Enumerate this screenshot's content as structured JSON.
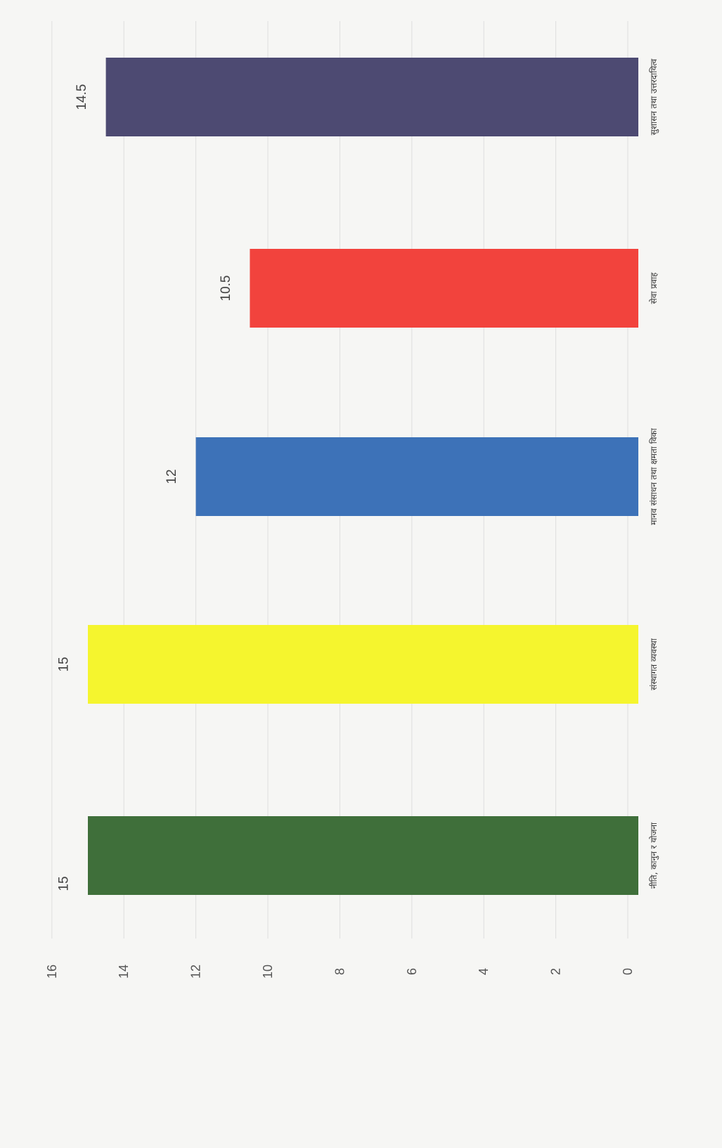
{
  "chart_data": {
    "type": "bar",
    "orientation": "rotated-90-clockwise",
    "categories": [
      "नीति, कानुन र योजना",
      "संस्थागत व्यवस्था",
      "मानव संसाधन तथा क्षमता विका",
      "सेवा प्रवाह",
      "सुशासन तथा उत्तरदायित्व"
    ],
    "values": [
      15,
      15,
      12,
      10.5,
      14.5
    ],
    "data_labels": [
      "15",
      "15",
      "12",
      "10.5",
      "14.5"
    ],
    "colors": [
      "#3f6f3a",
      "#f5f52e",
      "#3d72b8",
      "#f2433d",
      "#4d4a72"
    ],
    "ylim": [
      0,
      16
    ],
    "yticks": [
      "0",
      "2",
      "4",
      "6",
      "8",
      "10",
      "12",
      "14",
      "16"
    ],
    "grid": true,
    "legend": "none"
  }
}
